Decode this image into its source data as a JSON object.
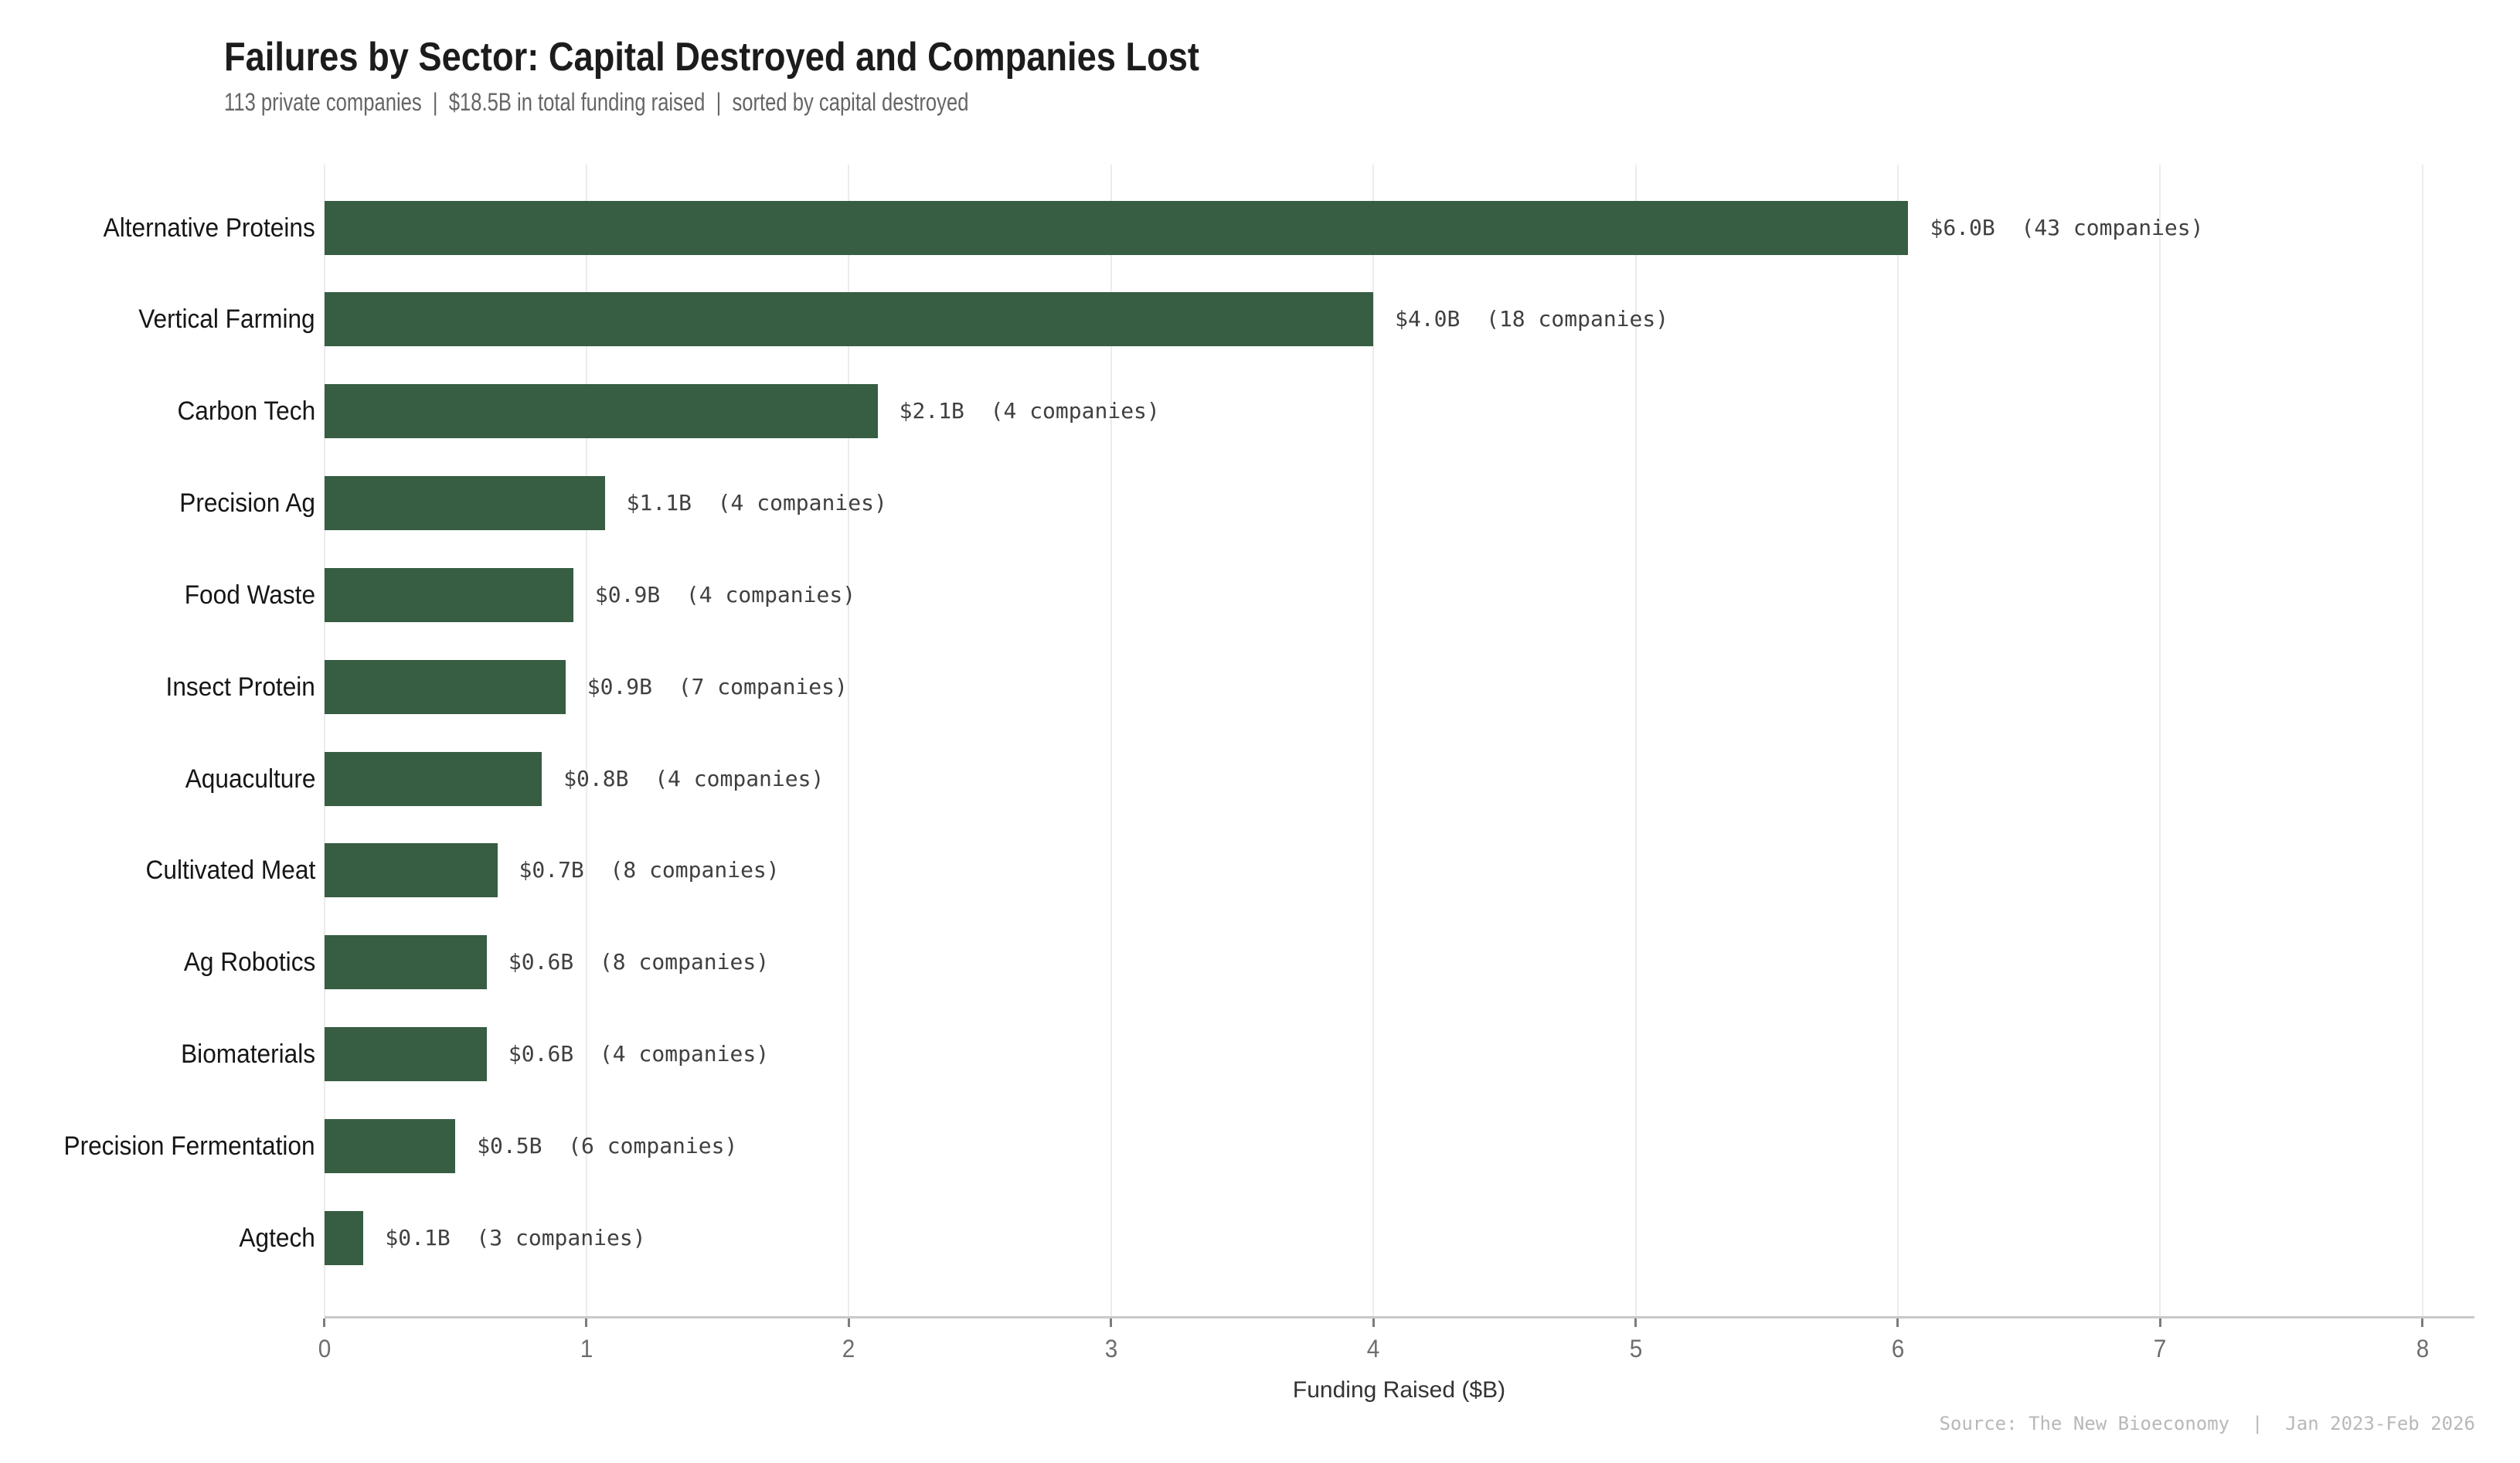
{
  "chart_data": {
    "type": "bar",
    "orientation": "horizontal",
    "title": "Failures by Sector: Capital Destroyed and Companies Lost",
    "subtitle": "113 private companies  |  $18.5B in total funding raised  |  sorted by capital destroyed",
    "xlabel": "Funding Raised ($B)",
    "xlim": [
      0,
      8.2
    ],
    "xticks": [
      0,
      1,
      2,
      3,
      4,
      5,
      6,
      7,
      8
    ],
    "grid": "vertical",
    "legend": "none",
    "bar_color": "#375D42",
    "categories": [
      "Alternative Proteins",
      "Vertical Farming",
      "Carbon Tech",
      "Precision Ag",
      "Food Waste",
      "Insect Protein",
      "Aquaculture",
      "Cultivated Meat",
      "Ag Robotics",
      "Biomaterials",
      "Precision Fermentation",
      "Agtech"
    ],
    "values": [
      6.04,
      4.0,
      2.11,
      1.07,
      0.95,
      0.92,
      0.83,
      0.66,
      0.62,
      0.62,
      0.5,
      0.15
    ],
    "companies": [
      43,
      18,
      4,
      4,
      4,
      7,
      4,
      8,
      8,
      4,
      6,
      3
    ],
    "bar_labels": [
      "$6.0B  (43 companies)",
      "$4.0B  (18 companies)",
      "$2.1B  (4 companies)",
      "$1.1B  (4 companies)",
      "$0.9B  (4 companies)",
      "$0.9B  (7 companies)",
      "$0.8B  (4 companies)",
      "$0.7B  (8 companies)",
      "$0.6B  (8 companies)",
      "$0.6B  (4 companies)",
      "$0.5B  (6 companies)",
      "$0.1B  (3 companies)"
    ],
    "footer": "Source: The New Bioeconomy  |  Jan 2023-Feb 2026"
  }
}
